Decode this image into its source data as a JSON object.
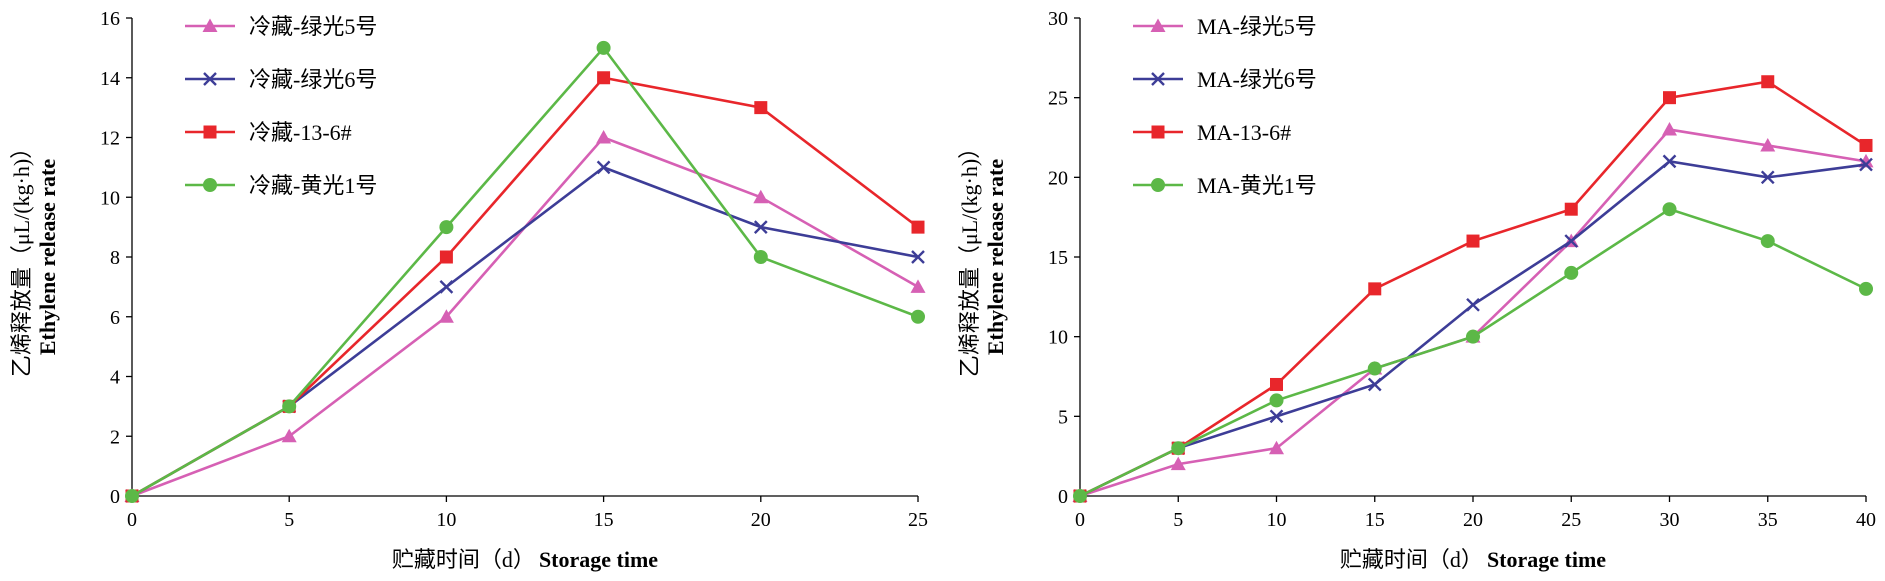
{
  "chart_data": [
    {
      "type": "line",
      "xlabel_cn": "贮藏时间（d）",
      "xlabel_en": "Storage time",
      "ylabel_cn": "乙烯释放量（μL/(kg·h)）",
      "ylabel_en": "Ethylene release rate",
      "x": [
        0,
        5,
        10,
        15,
        20,
        25
      ],
      "xlim": [
        0,
        25
      ],
      "ylim": [
        0,
        16
      ],
      "xticks": [
        0,
        5,
        10,
        15,
        20,
        25
      ],
      "yticks": [
        0,
        2,
        4,
        6,
        8,
        10,
        12,
        14,
        16
      ],
      "legend_position": "top-left",
      "grid": false,
      "series": [
        {
          "name": "冷藏-绿光5号",
          "color": "#d660b4",
          "marker": "triangle",
          "values": [
            0,
            2,
            6,
            12,
            10,
            7
          ]
        },
        {
          "name": "冷藏-绿光6号",
          "color": "#3d3d97",
          "marker": "x",
          "values": [
            0,
            3,
            7,
            11,
            9,
            8
          ]
        },
        {
          "name": "冷藏-13-6#",
          "color": "#e8262b",
          "marker": "square",
          "values": [
            0,
            3,
            8,
            14,
            13,
            9
          ]
        },
        {
          "name": "冷藏-黄光1号",
          "color": "#5cb847",
          "marker": "circle",
          "values": [
            0,
            3,
            9,
            15,
            8,
            6
          ]
        }
      ]
    },
    {
      "type": "line",
      "xlabel_cn": "贮藏时间（d）",
      "xlabel_en": "Storage time",
      "ylabel_cn": "乙烯释放量（μL/(kg·h)）",
      "ylabel_en": "Ethylene release rate",
      "x": [
        0,
        5,
        10,
        15,
        20,
        25,
        30,
        35,
        40
      ],
      "xlim": [
        0,
        40
      ],
      "ylim": [
        0,
        30
      ],
      "xticks": [
        0,
        5,
        10,
        15,
        20,
        25,
        30,
        35,
        40
      ],
      "yticks": [
        0,
        5,
        10,
        15,
        20,
        25,
        30
      ],
      "legend_position": "top-left",
      "grid": false,
      "series": [
        {
          "name": "MA-绿光5号",
          "color": "#d660b4",
          "marker": "triangle",
          "values": [
            0,
            2,
            3,
            8,
            10,
            16,
            23,
            22,
            21
          ]
        },
        {
          "name": "MA-绿光6号",
          "color": "#3d3d97",
          "marker": "x",
          "values": [
            0,
            3,
            5,
            7,
            12,
            16,
            21,
            20,
            20.8
          ]
        },
        {
          "name": "MA-13-6#",
          "color": "#e8262b",
          "marker": "square",
          "values": [
            0,
            3,
            7,
            13,
            16,
            18,
            25,
            26,
            22
          ]
        },
        {
          "name": "MA-黄光1号",
          "color": "#5cb847",
          "marker": "circle",
          "values": [
            0,
            3,
            6,
            8,
            10,
            14,
            18,
            16,
            13
          ]
        }
      ]
    }
  ]
}
